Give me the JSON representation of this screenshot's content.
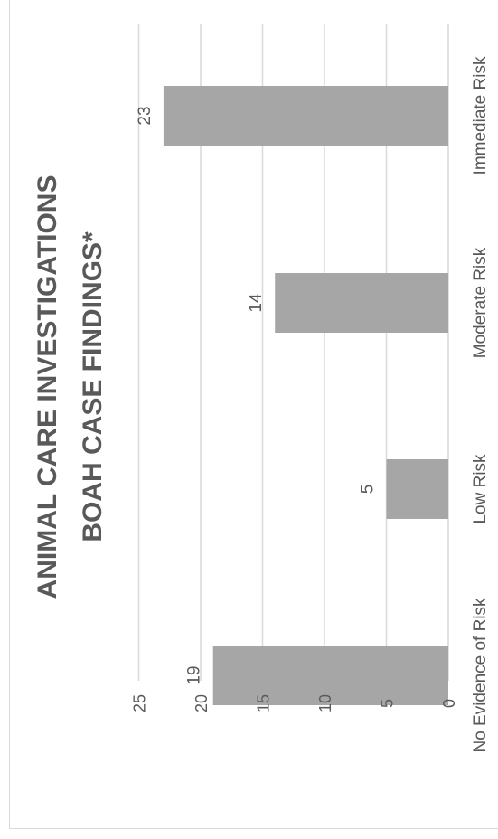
{
  "chart_data": {
    "type": "bar",
    "orientation": "rotated-90",
    "title_lines": [
      "ANIMAL CARE INVESTIGATIONS",
      "BOAH CASE FINDINGS*"
    ],
    "categories": [
      "No Evidence of Risk",
      "Low Risk",
      "Moderate Risk",
      "Immediate Risk"
    ],
    "values": [
      19,
      5,
      14,
      23
    ],
    "value_labels": [
      "19",
      "5",
      "14",
      "23"
    ],
    "y_ticks": [
      "0",
      "5",
      "10",
      "15",
      "20",
      "25"
    ],
    "ylim": [
      0,
      25
    ],
    "grid": true,
    "legend": "none",
    "bar_color": "#a6a6a6",
    "grid_color": "#d9d9d9",
    "text_color": "#595959"
  }
}
